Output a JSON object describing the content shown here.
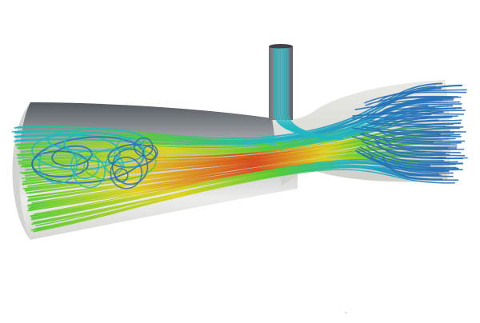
{
  "scene": {
    "background": "#ffffff",
    "subject": "streamline-flow-through-venturi-tube",
    "colors": {
      "low": "#2a6fb8",
      "mid_low": "#20b7c4",
      "mid": "#55cc33",
      "mid_high": "#e0d21f",
      "high": "#d8491f",
      "wall_dark": "#4a4d52",
      "wall_light": "#eeeeea"
    }
  },
  "marker": "·"
}
